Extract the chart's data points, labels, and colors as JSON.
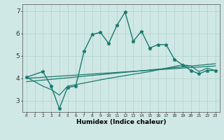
{
  "xlabel": "Humidex (Indice chaleur)",
  "ylabel": "",
  "background_color": "#cfe8e5",
  "grid_color": "#b0d0cc",
  "line_color": "#1a7a6e",
  "xlim": [
    -0.5,
    23.5
  ],
  "ylim": [
    2.5,
    7.3
  ],
  "xticks": [
    0,
    1,
    2,
    3,
    4,
    5,
    6,
    7,
    8,
    9,
    10,
    11,
    12,
    13,
    14,
    15,
    16,
    17,
    18,
    19,
    20,
    21,
    22,
    23
  ],
  "yticks": [
    3,
    4,
    5,
    6,
    7
  ],
  "series": [
    {
      "x": [
        0,
        2,
        3,
        4,
        5,
        6,
        7,
        8,
        9,
        10,
        11,
        12,
        13,
        14,
        15,
        16,
        17,
        18,
        19,
        20,
        21,
        22,
        23
      ],
      "y": [
        4.05,
        4.3,
        3.65,
        2.65,
        3.6,
        3.65,
        5.2,
        5.95,
        6.05,
        5.55,
        6.35,
        6.95,
        5.65,
        6.1,
        5.35,
        5.5,
        5.5,
        4.85,
        4.6,
        4.35,
        4.2,
        4.35,
        4.35
      ],
      "marker": "*",
      "markersize": 3.5,
      "linewidth": 1.0
    },
    {
      "x": [
        0,
        2,
        3,
        4,
        5,
        10,
        15,
        19,
        20,
        21,
        22,
        23
      ],
      "y": [
        4.05,
        3.65,
        3.5,
        3.25,
        3.65,
        4.0,
        4.3,
        4.6,
        4.55,
        4.3,
        4.45,
        4.35
      ],
      "marker": null,
      "linewidth": 0.9
    },
    {
      "x": [
        0,
        23
      ],
      "y": [
        3.85,
        4.65
      ],
      "marker": null,
      "linewidth": 0.9
    },
    {
      "x": [
        0,
        23
      ],
      "y": [
        4.0,
        4.55
      ],
      "marker": null,
      "linewidth": 0.9
    }
  ]
}
